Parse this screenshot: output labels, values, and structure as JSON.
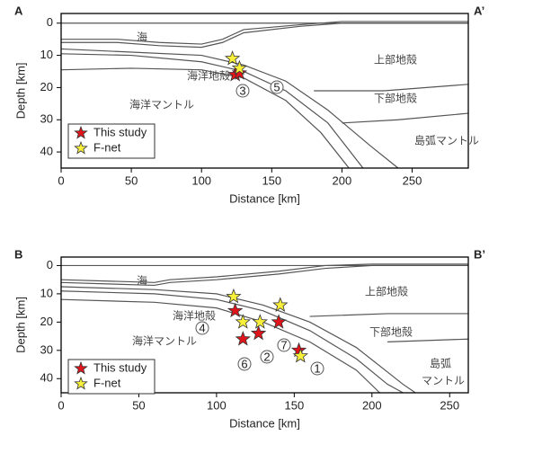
{
  "chart_data": [
    {
      "type": "scatter",
      "label_left": "A",
      "label_right": "A’",
      "xlabel": "Distance [km]",
      "ylabel": "Depth [km]",
      "xlim": [
        0,
        290
      ],
      "ylim": [
        -3,
        45
      ],
      "xticks": [
        0,
        50,
        100,
        150,
        200,
        250
      ],
      "yticks": [
        0,
        10,
        20,
        30,
        40
      ],
      "series": [
        {
          "name": "This study",
          "color": "#e0151b",
          "x": [
            124,
            127
          ],
          "y": [
            16,
            15.5
          ]
        },
        {
          "name": "F-net",
          "color": "#f7ef3a",
          "x": [
            122,
            127
          ],
          "y": [
            11,
            14
          ]
        }
      ],
      "lines": [
        {
          "x": [
            0,
            290
          ],
          "y": [
            0,
            0
          ]
        },
        {
          "x": [
            0,
            40,
            70,
            100,
            115,
            130,
            170,
            200,
            290
          ],
          "y": [
            5,
            5,
            6,
            6.5,
            5,
            2,
            0.5,
            -0.5,
            -0.5
          ]
        },
        {
          "x": [
            0,
            40,
            70,
            100,
            115,
            130,
            170,
            200,
            290
          ],
          "y": [
            6,
            6,
            7,
            7.5,
            6,
            3,
            1,
            0,
            0
          ]
        },
        {
          "x": [
            0,
            50,
            100,
            130,
            160,
            190,
            220,
            240
          ],
          "y": [
            8,
            9,
            10,
            13,
            18,
            27,
            38,
            45
          ]
        },
        {
          "x": [
            0,
            50,
            100,
            130,
            160,
            190,
            215
          ],
          "y": [
            9.5,
            10,
            12,
            15,
            21,
            31,
            45
          ]
        },
        {
          "x": [
            0,
            50,
            100,
            130,
            160,
            185,
            205
          ],
          "y": [
            14.5,
            14,
            14.5,
            17,
            24,
            34,
            45
          ]
        },
        {
          "x": [
            180,
            230,
            290
          ],
          "y": [
            21,
            21,
            19
          ]
        },
        {
          "x": [
            200,
            240,
            290
          ],
          "y": [
            31,
            30,
            28
          ]
        }
      ],
      "region_labels": [
        "海",
        "海洋地殻",
        "海洋マントル",
        "上部地殻",
        "下部地殻",
        "島弧マントル"
      ],
      "event_labels": [
        "3",
        "5"
      ]
    },
    {
      "type": "scatter",
      "label_left": "B",
      "label_right": "B’",
      "xlabel": "Distance [km]",
      "ylabel": "Depth [km]",
      "xlim": [
        0,
        262
      ],
      "ylim": [
        -3,
        45
      ],
      "xticks": [
        0,
        50,
        100,
        150,
        200,
        250
      ],
      "yticks": [
        0,
        10,
        20,
        30,
        40
      ],
      "series": [
        {
          "name": "This study",
          "color": "#e0151b",
          "x": [
            112,
            140,
            127,
            117,
            153
          ],
          "y": [
            16,
            20,
            24,
            26,
            30
          ]
        },
        {
          "name": "F-net",
          "color": "#f7ef3a",
          "x": [
            111,
            141,
            117,
            128,
            154
          ],
          "y": [
            11,
            14,
            20,
            20,
            32
          ]
        }
      ],
      "lines": [
        {
          "x": [
            0,
            262
          ],
          "y": [
            0,
            0
          ]
        },
        {
          "x": [
            0,
            60,
            70,
            100,
            140,
            170,
            200,
            262
          ],
          "y": [
            5,
            6,
            5,
            4,
            2,
            0,
            -0.5,
            -0.5
          ]
        },
        {
          "x": [
            0,
            60,
            70,
            100,
            140,
            170,
            200,
            262
          ],
          "y": [
            6,
            7,
            6,
            5,
            3,
            1,
            0,
            0
          ]
        },
        {
          "x": [
            0,
            60,
            100,
            130,
            160,
            190,
            220,
            228
          ],
          "y": [
            7.5,
            8.5,
            10,
            14,
            20,
            29,
            42,
            45
          ]
        },
        {
          "x": [
            0,
            60,
            100,
            130,
            160,
            190,
            210,
            220
          ],
          "y": [
            9,
            10,
            12,
            16,
            23,
            33,
            42,
            45
          ]
        },
        {
          "x": [
            0,
            60,
            100,
            130,
            160,
            190,
            205
          ],
          "y": [
            12,
            13,
            15,
            20,
            27,
            37,
            45
          ]
        },
        {
          "x": [
            160,
            210,
            262
          ],
          "y": [
            18,
            17,
            17
          ]
        },
        {
          "x": [
            210,
            262
          ],
          "y": [
            27,
            26
          ]
        }
      ],
      "region_labels": [
        "海",
        "海洋地殻",
        "海洋マントル",
        "上部地殻",
        "下部地殻",
        "島弧",
        "マントル"
      ],
      "event_labels": [
        "4",
        "7",
        "2",
        "6",
        "1"
      ]
    }
  ]
}
